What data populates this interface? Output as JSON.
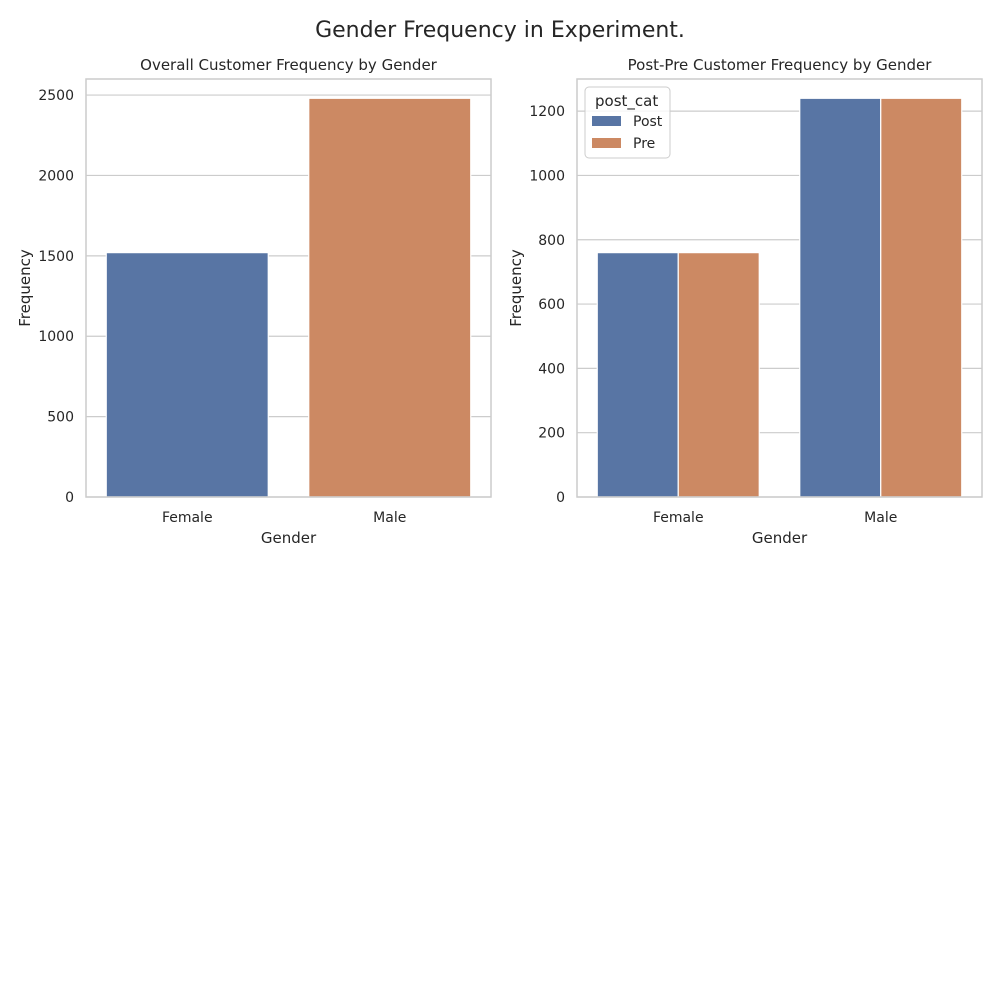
{
  "figure": {
    "title": "Gender Frequency in Experiment."
  },
  "colors": {
    "blue": "#5875a4",
    "orange": "#cc8963",
    "grid": "#cccccc",
    "text": "#262626"
  },
  "chart_data": [
    {
      "type": "bar",
      "title": "Overall Customer Frequency by Gender",
      "xlabel": "Gender",
      "ylabel": "Frequency",
      "categories": [
        "Female",
        "Male"
      ],
      "values": [
        1520,
        2480
      ],
      "bar_colors": [
        "#5875a4",
        "#cc8963"
      ],
      "ylim": [
        0,
        2600
      ],
      "yticks": [
        0,
        500,
        1000,
        1500,
        2000,
        2500
      ],
      "grid": "horizontal"
    },
    {
      "type": "bar",
      "title": "Post-Pre Customer Frequency by Gender",
      "xlabel": "Gender",
      "ylabel": "Frequency",
      "categories": [
        "Female",
        "Male"
      ],
      "series": [
        {
          "name": "Post",
          "values": [
            760,
            1240
          ],
          "color": "#5875a4"
        },
        {
          "name": "Pre",
          "values": [
            760,
            1240
          ],
          "color": "#cc8963"
        }
      ],
      "legend_title": "post_cat",
      "legend_position": "top-left",
      "ylim": [
        0,
        1300
      ],
      "yticks": [
        0,
        200,
        400,
        600,
        800,
        1000,
        1200
      ],
      "grid": "horizontal"
    }
  ]
}
